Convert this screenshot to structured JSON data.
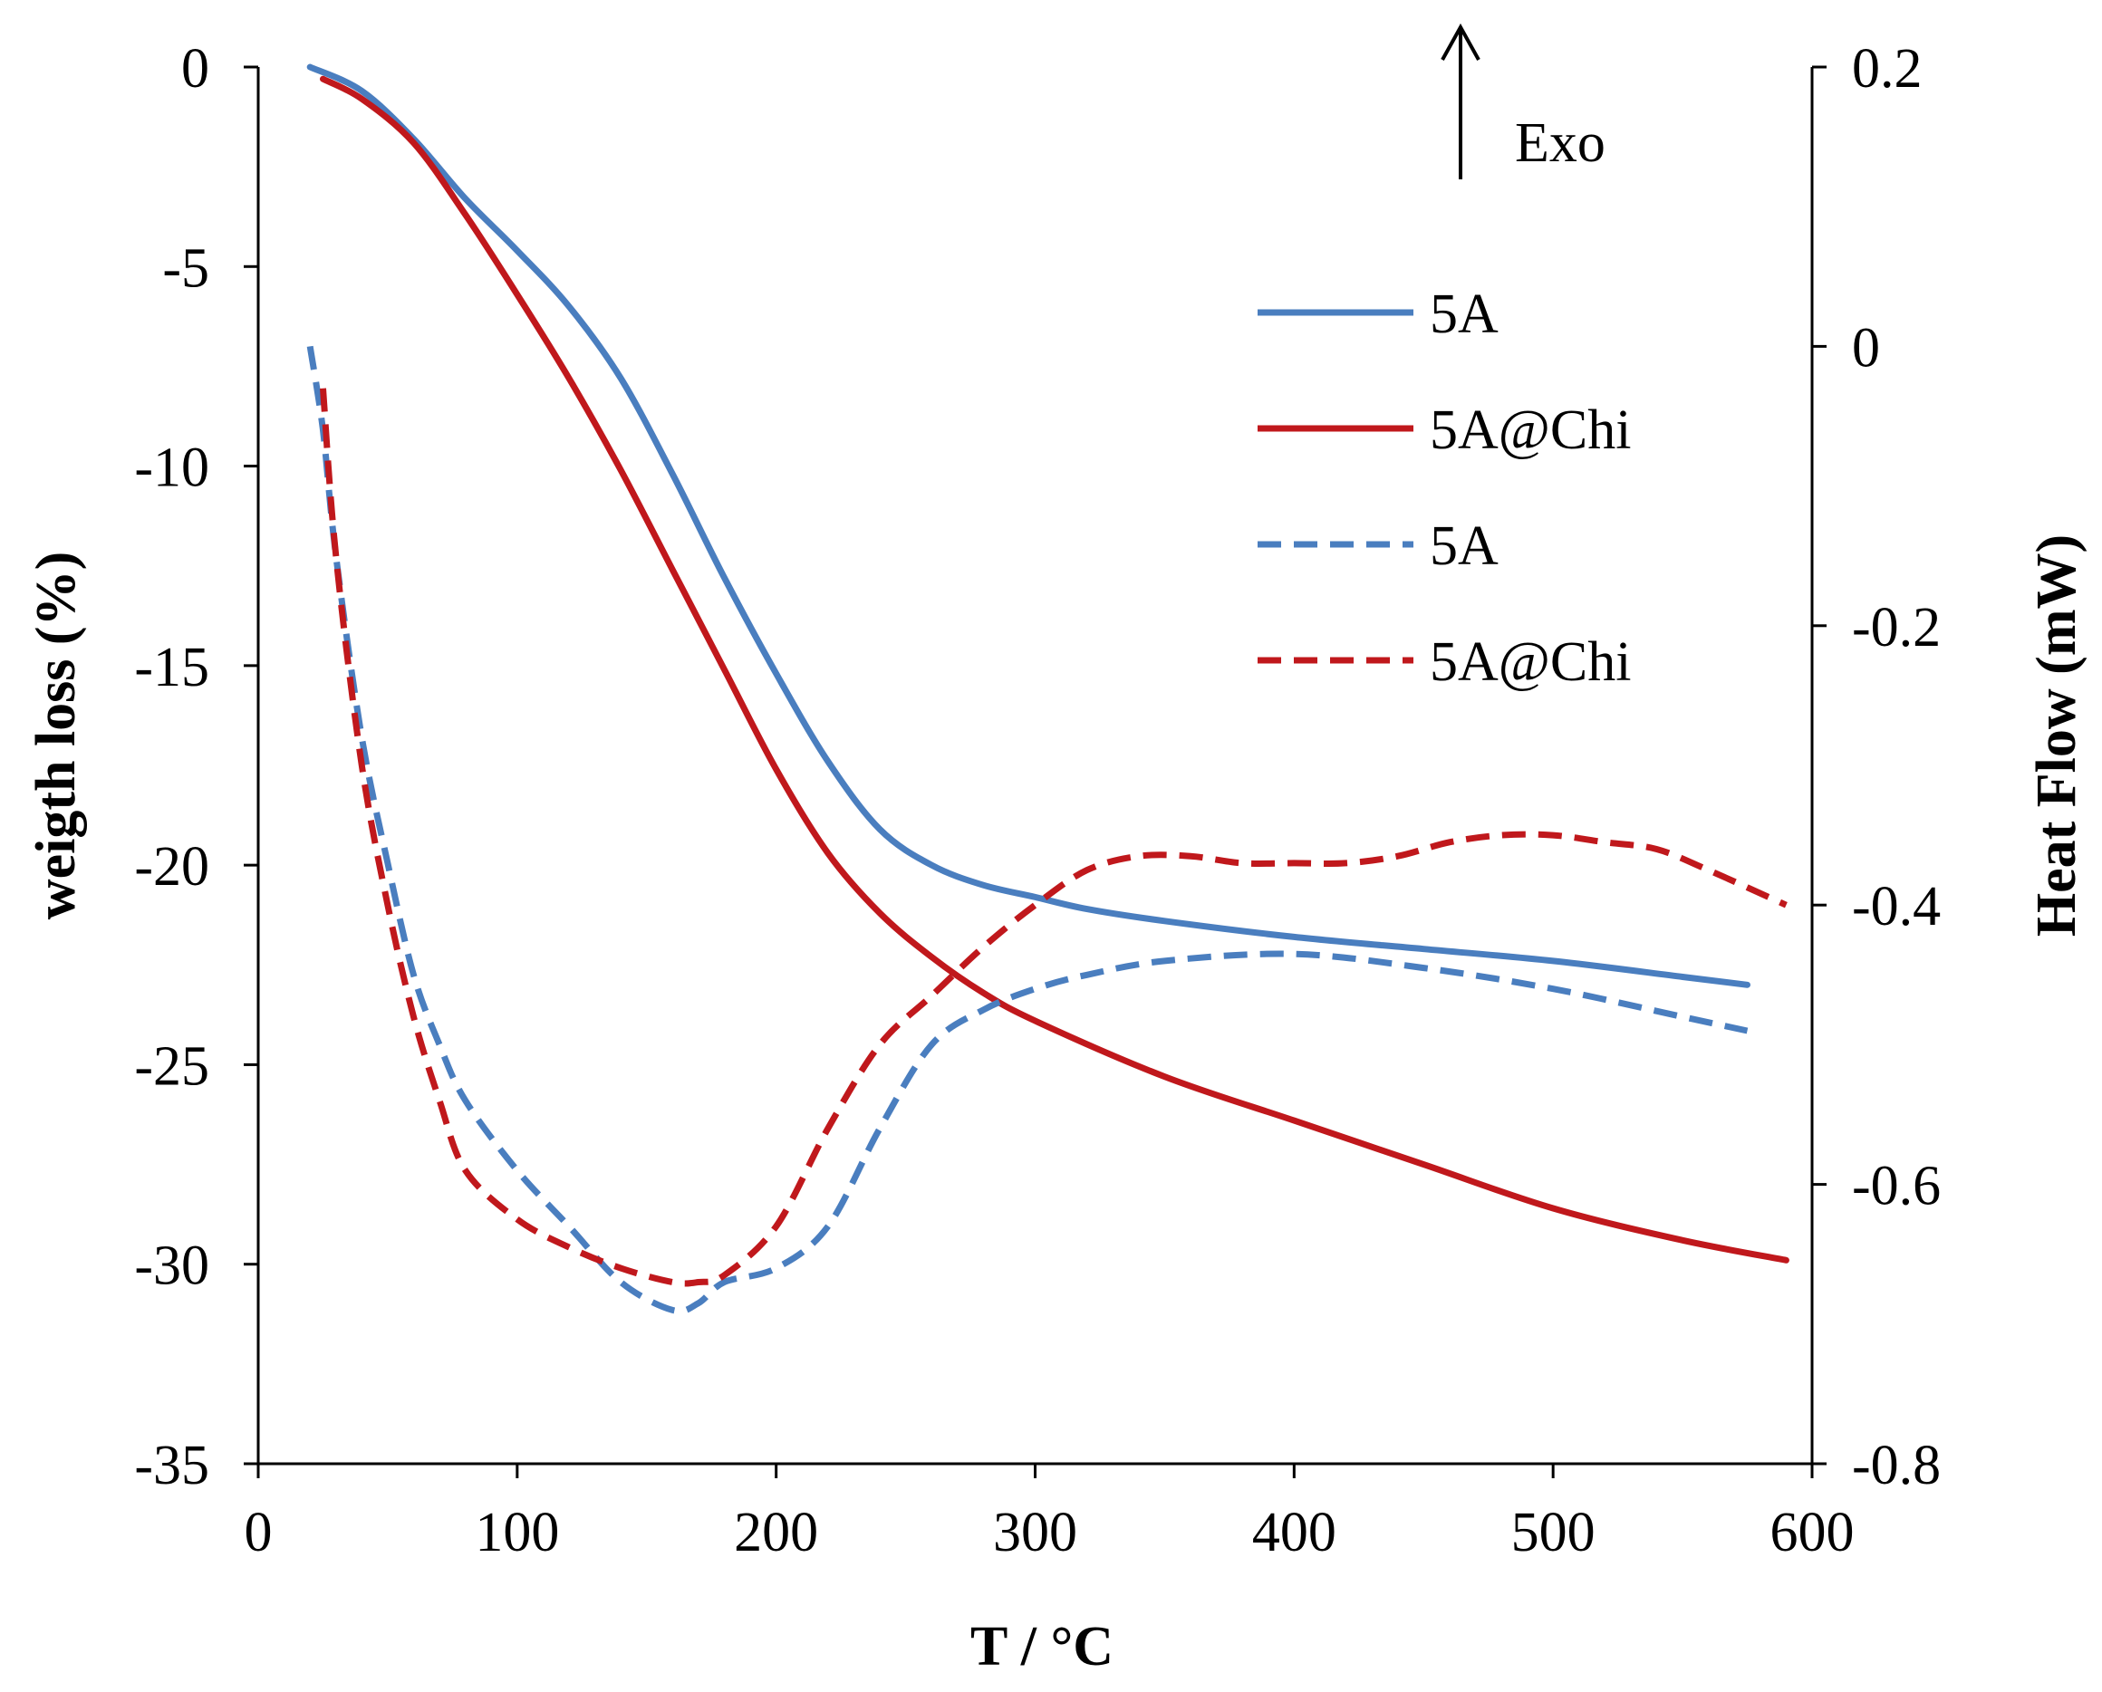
{
  "chart_data": {
    "type": "line",
    "title": "",
    "xlabel": "T / °C",
    "ylabel": "weigth loss  (%)",
    "y2label": "Heat  Flow (mW)",
    "xlim": [
      0,
      600
    ],
    "ylim": [
      -35,
      0
    ],
    "y2lim": [
      -0.8,
      0.2
    ],
    "xticks": [
      "0",
      "100",
      "200",
      "300",
      "400",
      "500",
      "600"
    ],
    "yticks": [
      "0",
      "-5",
      "-10",
      "-15",
      "-20",
      "-25",
      "-30",
      "-35"
    ],
    "y2ticks": [
      "0.2",
      "0",
      "-0.2",
      "-0.4",
      "-0.6",
      "-0.8"
    ],
    "annotation": "Exo",
    "grid": false,
    "legend_position": "upper-right",
    "series": [
      {
        "name": "5A",
        "axis": "left",
        "style": "solid",
        "color": "#4a7ebf",
        "x": [
          20,
          40,
          60,
          80,
          100,
          120,
          140,
          160,
          180,
          200,
          220,
          240,
          260,
          280,
          300,
          320,
          350,
          400,
          450,
          500,
          550,
          575
        ],
        "y": [
          0,
          -0.6,
          -1.8,
          -3.3,
          -4.6,
          -6.0,
          -7.8,
          -10.2,
          -12.8,
          -15.2,
          -17.4,
          -19.1,
          -20.0,
          -20.5,
          -20.8,
          -21.1,
          -21.4,
          -21.8,
          -22.1,
          -22.4,
          -22.8,
          -23.0
        ]
      },
      {
        "name": "5A@Chi",
        "axis": "left",
        "style": "solid",
        "color": "#c0181c",
        "x": [
          25,
          40,
          60,
          80,
          100,
          120,
          140,
          160,
          180,
          200,
          220,
          240,
          260,
          280,
          300,
          350,
          400,
          450,
          500,
          550,
          590
        ],
        "y": [
          -0.3,
          -0.8,
          -1.9,
          -3.7,
          -5.7,
          -7.8,
          -10.1,
          -12.6,
          -15.1,
          -17.6,
          -19.7,
          -21.2,
          -22.3,
          -23.2,
          -23.9,
          -25.3,
          -26.4,
          -27.5,
          -28.6,
          -29.4,
          -29.9
        ]
      },
      {
        "name": "5A",
        "axis": "right",
        "style": "dashed",
        "color": "#4a7ebf",
        "x": [
          20,
          25,
          30,
          40,
          50,
          60,
          70,
          80,
          100,
          120,
          140,
          160,
          170,
          180,
          200,
          220,
          240,
          260,
          280,
          300,
          320,
          350,
          400,
          450,
          500,
          550,
          575
        ],
        "y": [
          0,
          -0.06,
          -0.15,
          -0.28,
          -0.37,
          -0.45,
          -0.5,
          -0.54,
          -0.59,
          -0.63,
          -0.67,
          -0.69,
          -0.685,
          -0.67,
          -0.66,
          -0.63,
          -0.56,
          -0.5,
          -0.475,
          -0.46,
          -0.45,
          -0.44,
          -0.435,
          -0.445,
          -0.46,
          -0.48,
          -0.49
        ]
      },
      {
        "name": "5A@Chi",
        "axis": "right",
        "style": "dashed",
        "color": "#c0181c",
        "x": [
          25,
          30,
          40,
          50,
          60,
          70,
          80,
          100,
          120,
          140,
          160,
          170,
          180,
          200,
          220,
          240,
          260,
          280,
          300,
          320,
          340,
          360,
          380,
          400,
          420,
          440,
          460,
          480,
          500,
          520,
          540,
          560,
          590
        ],
        "y": [
          -0.03,
          -0.15,
          -0.3,
          -0.4,
          -0.48,
          -0.54,
          -0.59,
          -0.625,
          -0.645,
          -0.66,
          -0.67,
          -0.67,
          -0.665,
          -0.63,
          -0.56,
          -0.5,
          -0.465,
          -0.43,
          -0.4,
          -0.375,
          -0.365,
          -0.365,
          -0.37,
          -0.37,
          -0.37,
          -0.365,
          -0.355,
          -0.35,
          -0.35,
          -0.355,
          -0.36,
          -0.375,
          -0.4
        ]
      }
    ]
  }
}
